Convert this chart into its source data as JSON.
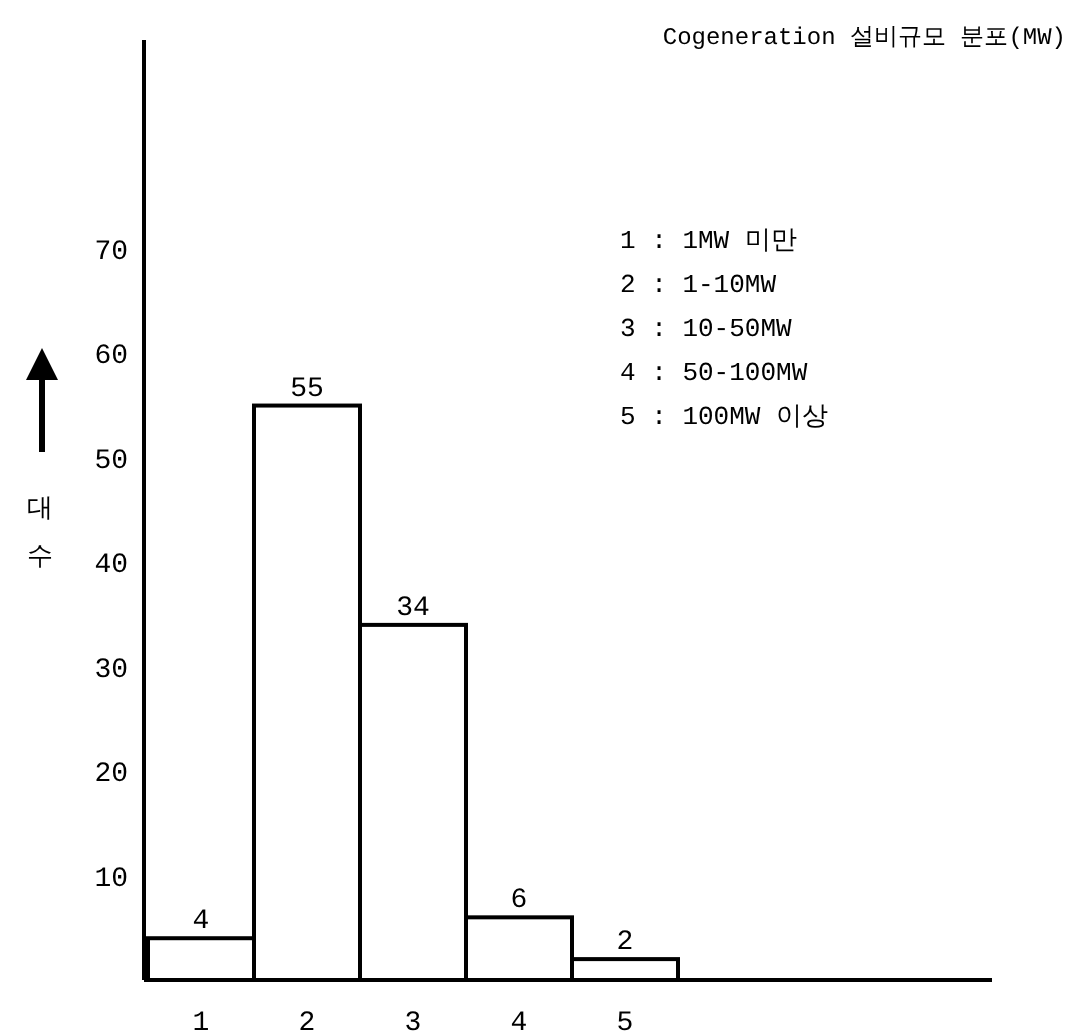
{
  "chart_data": {
    "type": "bar",
    "title": "Cogeneration 설비규모 분포(MW)",
    "ylabel": "대수",
    "categories": [
      "1",
      "2",
      "3",
      "4",
      "5"
    ],
    "values": [
      4,
      55,
      34,
      6,
      2
    ],
    "color": "#ffffff",
    "ylim": [
      0,
      90
    ],
    "yticks": [
      10,
      20,
      30,
      40,
      50,
      60,
      70
    ],
    "data_labels": true,
    "annotations": [
      "1 : 1MW 미만",
      "2 : 1-10MW",
      "3 : 10-50MW",
      "4 : 50-100MW",
      "5 : 100MW 이상"
    ]
  }
}
